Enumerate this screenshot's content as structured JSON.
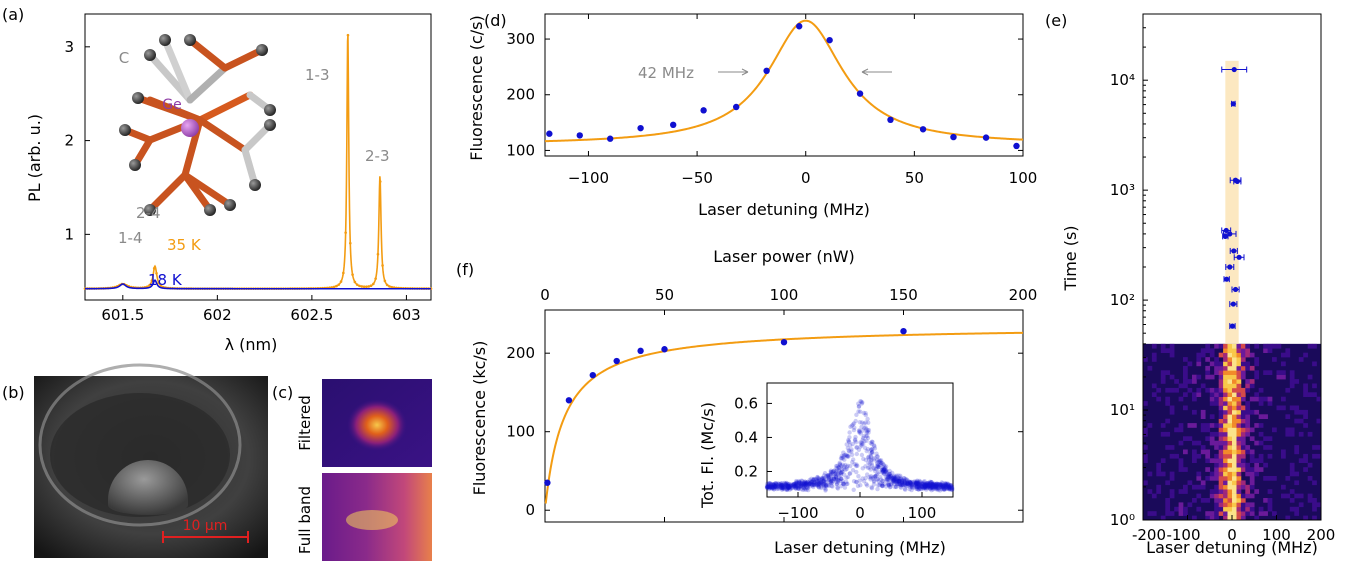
{
  "panels": {
    "a": "(a)",
    "b": "(b)",
    "c": "(c)",
    "d": "(d)",
    "e": "(e)",
    "f": "(f)"
  },
  "colors": {
    "orange": "#f39c12",
    "blue": "#1010d0",
    "gray_text": "#8a8a8a",
    "purple": "#8e3ca6",
    "rust": "#c8531f"
  },
  "panel_a": {
    "ylabel": "PL (arb. u.)",
    "xlabel": "λ (nm)",
    "xticks": [
      "601.5",
      "602",
      "602.5",
      "603"
    ],
    "yticks": [
      "1",
      "2",
      "3"
    ],
    "peak_labels": [
      "1-4",
      "2-4",
      "1-3",
      "2-3"
    ],
    "temp_labels": [
      "35 K",
      "18 K"
    ],
    "molecule_labels": {
      "carbon": "C",
      "germanium": "Ge"
    }
  },
  "panel_b": {
    "scalebar": "10 µm"
  },
  "panel_c": {
    "top_label": "Filtered",
    "bottom_label": "Full band"
  },
  "panel_d": {
    "ylabel": "Fluorescence (c/s)",
    "xlabel": "Laser detuning (MHz)",
    "xticks": [
      "−100",
      "−50",
      "0",
      "50",
      "100"
    ],
    "yticks": [
      "100",
      "200",
      "300"
    ],
    "linewidth_label": "42 MHz"
  },
  "panel_e": {
    "ylabel": "Time (s)",
    "xlabel": "Laser detuning (MHz)",
    "xticks": [
      "-200",
      "-100",
      "0",
      "100",
      "200"
    ],
    "yticks": [
      "10⁰",
      "10¹",
      "10²",
      "10³",
      "10⁴"
    ]
  },
  "panel_f": {
    "ylabel": "Fluorescence (kc/s)",
    "top_xlabel": "Laser power (nW)",
    "top_xticks": [
      "0",
      "50",
      "100",
      "150",
      "200"
    ],
    "yticks": [
      "0",
      "100",
      "200"
    ],
    "inset": {
      "ylabel": "Tot. Fl. (Mc/s)",
      "xlabel": "Laser detuning (MHz)",
      "xticks": [
        "−100",
        "0",
        "100"
      ],
      "yticks": [
        "0.2",
        "0.4",
        "0.6"
      ]
    }
  },
  "chart_data": [
    {
      "id": "a",
      "type": "line",
      "xlabel": "λ (nm)",
      "ylabel": "PL (arb. u.)",
      "xlim": [
        601.3,
        603.13
      ],
      "ylim": [
        0.3,
        3.35
      ],
      "series": [
        {
          "name": "35 K",
          "color": "#f39c12",
          "baseline": 0.42,
          "peaks": [
            [
              601.5,
              0.05,
              0.03
            ],
            [
              601.67,
              0.24,
              0.012
            ],
            [
              602.69,
              2.75,
              0.006
            ],
            [
              602.86,
              1.2,
              0.007
            ]
          ]
        },
        {
          "name": "18 K",
          "color": "#1010d0",
          "baseline": 0.42,
          "peaks": [
            [
              601.5,
              0.05,
              0.02
            ],
            [
              601.67,
              0.09,
              0.012
            ]
          ]
        }
      ]
    },
    {
      "id": "d",
      "type": "scatter",
      "xlabel": "Laser detuning (MHz)",
      "ylabel": "Fluorescence (c/s)",
      "xlim": [
        -120,
        100
      ],
      "ylim": [
        90,
        345
      ],
      "x": [
        -118,
        -104,
        -90,
        -76,
        -61,
        -47,
        -32,
        -18,
        -3,
        11,
        25,
        39,
        54,
        68,
        83,
        97
      ],
      "y": [
        130,
        127,
        121,
        140,
        146,
        172,
        178,
        243,
        323,
        298,
        202,
        155,
        138,
        124,
        123,
        108
      ],
      "fit": {
        "type": "lorentzian",
        "fwhm": 42,
        "center": 0,
        "offset": 110,
        "amplitude": 223
      }
    },
    {
      "id": "f",
      "type": "scatter",
      "xlabel": "Laser power (nW)",
      "ylabel": "Fluorescence (kc/s)",
      "xlim": [
        0,
        200
      ],
      "ylim": [
        -15,
        255
      ],
      "x": [
        1,
        10,
        20,
        30,
        40,
        50,
        100,
        150
      ],
      "y": [
        35,
        140,
        172,
        190,
        203,
        205,
        214,
        228
      ],
      "fit": {
        "type": "saturation",
        "I_inf": 235,
        "P_sat": 8
      }
    },
    {
      "id": "f-inset",
      "type": "scatter",
      "xlabel": "Laser detuning (MHz)",
      "ylabel": "Tot. Fl. (Mc/s)",
      "xlim": [
        -150,
        150
      ],
      "ylim": [
        0.05,
        0.72
      ]
    },
    {
      "id": "e",
      "type": "heatmap",
      "xlabel": "Laser detuning (MHz)",
      "ylabel": "Time (s)",
      "xlim": [
        -200,
        200
      ],
      "ylim": [
        1,
        40000
      ],
      "yscale": "log",
      "points": [
        {
          "t": 12500,
          "x": 5,
          "err": 28
        },
        {
          "t": 6100,
          "x": 3,
          "err": 4
        },
        {
          "t": 1230,
          "x": 8,
          "err": 12
        },
        {
          "t": 1200,
          "x": 12,
          "err": 8
        },
        {
          "t": 430,
          "x": -13,
          "err": 10
        },
        {
          "t": 400,
          "x": -5,
          "err": 14
        },
        {
          "t": 380,
          "x": -15,
          "err": 6
        },
        {
          "t": 280,
          "x": 4,
          "err": 8
        },
        {
          "t": 245,
          "x": 16,
          "err": 11
        },
        {
          "t": 200,
          "x": -5,
          "err": 9
        },
        {
          "t": 155,
          "x": -12,
          "err": 6
        },
        {
          "t": 125,
          "x": 8,
          "err": 8
        },
        {
          "t": 92,
          "x": 3,
          "err": 8
        },
        {
          "t": 58,
          "x": 1,
          "err": 6
        }
      ]
    }
  ]
}
